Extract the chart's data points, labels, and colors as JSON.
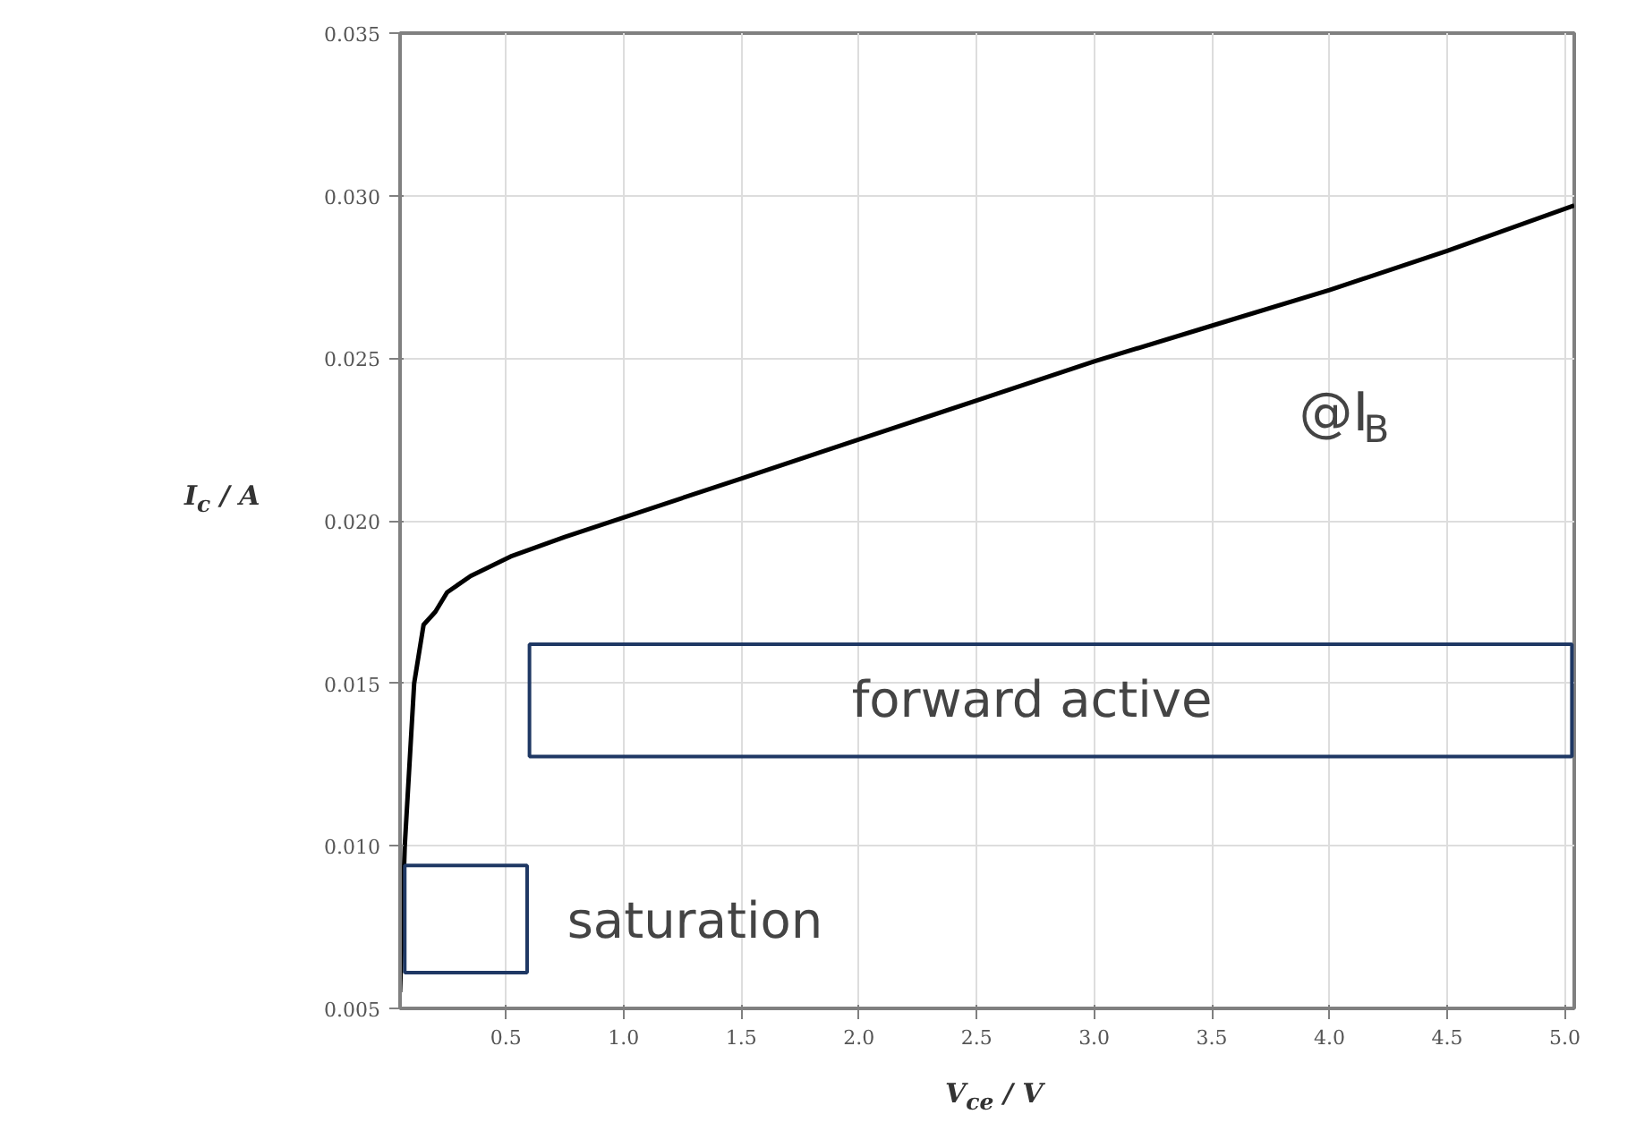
{
  "chart_data": {
    "type": "line",
    "xlabel": "V$_{ce}$ / V",
    "ylabel": "I$_{c}$ / A",
    "annotations": [
      "@I$_{B}$",
      "forward active",
      "saturation"
    ],
    "xlim": [
      0.05,
      5.04
    ],
    "ylim": [
      0.005,
      0.035
    ],
    "xticks": [
      {
        "value": 0.5,
        "label": "0.5"
      },
      {
        "value": 1,
        "label": "1.0"
      },
      {
        "value": 1.5,
        "label": "1.5"
      },
      {
        "value": 2,
        "label": "2.0"
      },
      {
        "value": 2.5,
        "label": "2.5"
      },
      {
        "value": 3,
        "label": "3.0"
      },
      {
        "value": 3.5,
        "label": "3.5"
      },
      {
        "value": 4,
        "label": "4.0"
      },
      {
        "value": 4.5,
        "label": "4.5"
      },
      {
        "value": 5,
        "label": "5.0"
      }
    ],
    "yticks": [
      {
        "value": 0.005,
        "label": "0.005"
      },
      {
        "value": 0.01,
        "label": "0.010"
      },
      {
        "value": 0.015,
        "label": "0.015"
      },
      {
        "value": 0.02,
        "label": "0.020"
      },
      {
        "value": 0.025,
        "label": "0.025"
      },
      {
        "value": 0.03,
        "label": "0.030"
      },
      {
        "value": 0.035,
        "label": "0.035"
      }
    ],
    "grid": true,
    "series": [
      {
        "color": "#000000",
        "x": [
          0.05,
          0.07,
          0.11,
          0.15,
          0.2,
          0.25,
          0.35,
          0.52,
          0.75,
          1.0,
          1.5,
          2.0,
          2.5,
          3.0,
          3.5,
          4.0,
          4.5,
          5.04
        ],
        "values": [
          0.0055,
          0.01,
          0.015,
          0.0168,
          0.0172,
          0.0178,
          0.0183,
          0.0189,
          0.0195,
          0.0201,
          0.0213,
          0.0225,
          0.0237,
          0.0249,
          0.026,
          0.0271,
          0.0283,
          0.0297
        ]
      }
    ]
  }
}
